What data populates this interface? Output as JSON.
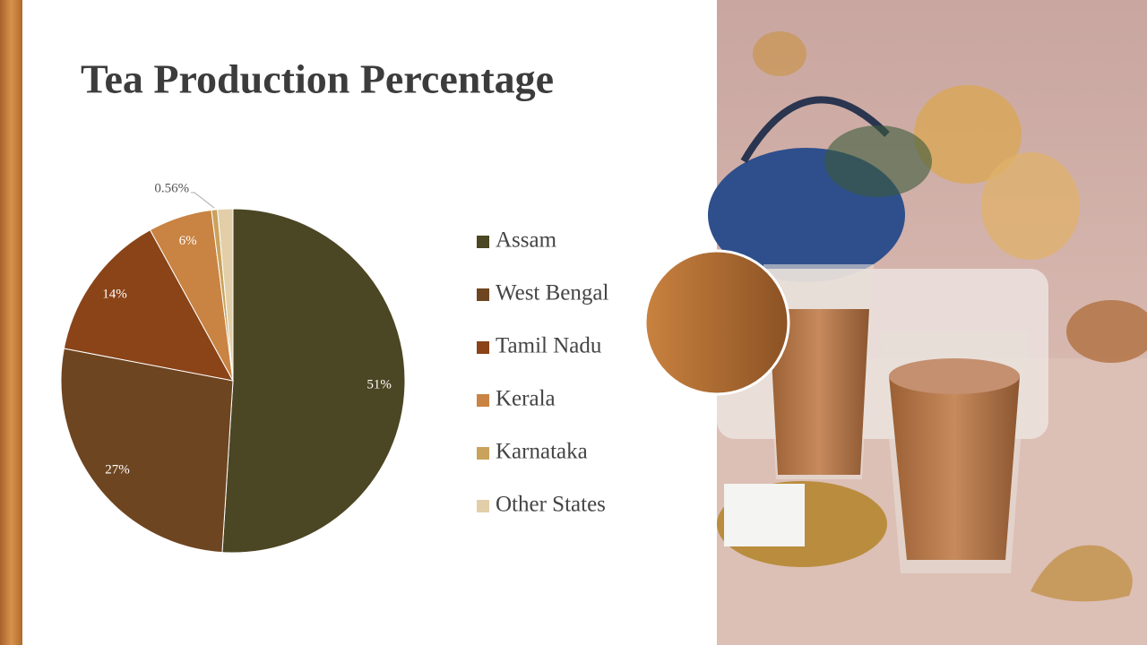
{
  "chart_data": {
    "type": "pie",
    "title": "Tea Production Percentage",
    "categories": [
      "Assam",
      "West Bengal",
      "Tamil Nadu",
      "Kerala",
      "Karnataka",
      "Other States"
    ],
    "values": [
      51,
      27,
      14,
      6,
      0.56,
      1.44
    ],
    "value_labels": [
      "51%",
      "27%",
      "14%",
      "6%",
      "0.56%",
      null
    ],
    "colors": [
      "#4b4623",
      "#6e4521",
      "#8a4418",
      "#c98342",
      "#c9a25c",
      "#e2cfa9"
    ],
    "legend": "right"
  }
}
